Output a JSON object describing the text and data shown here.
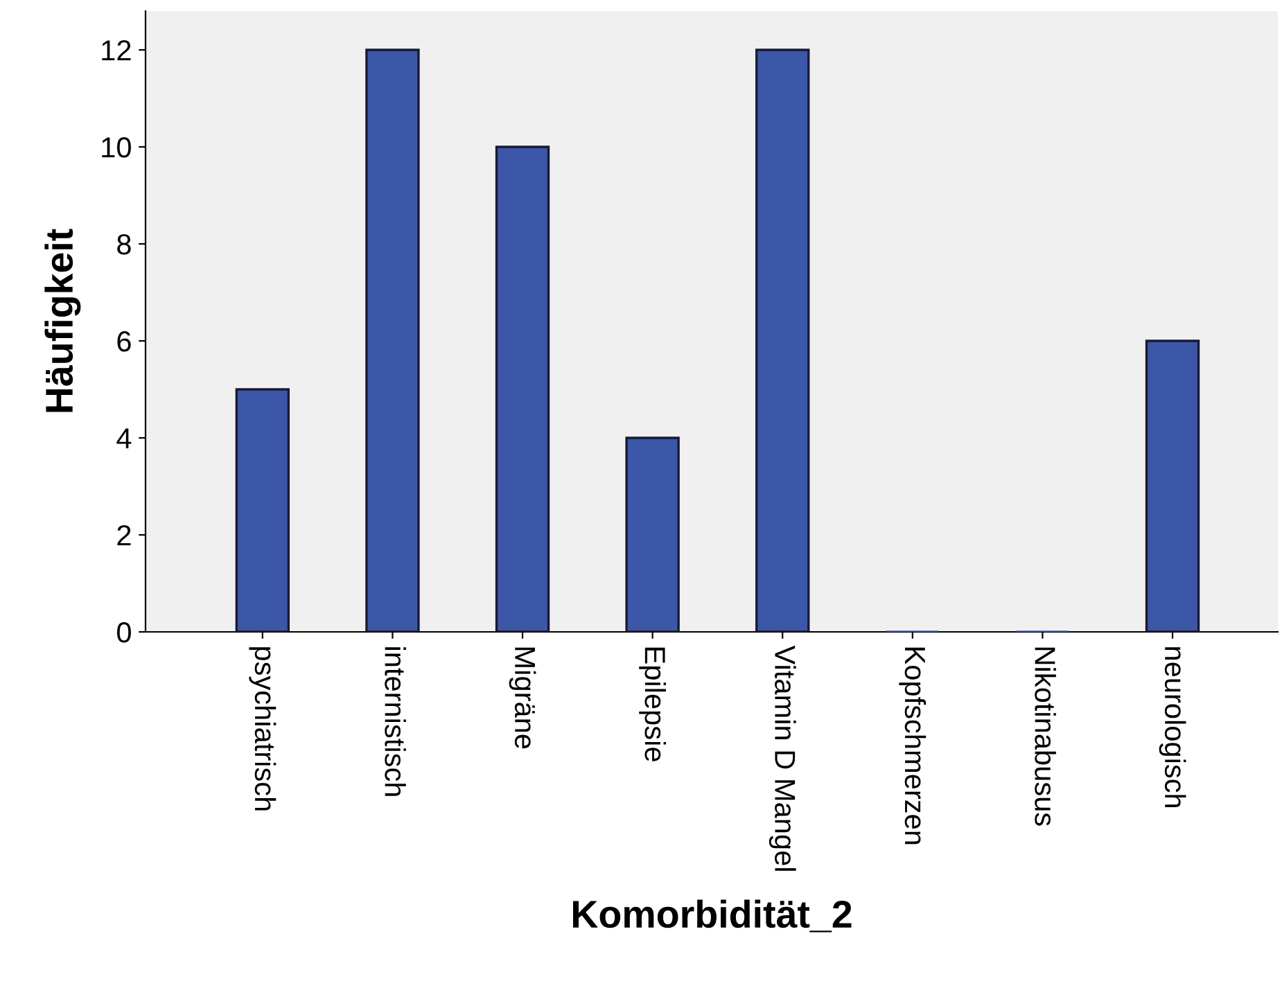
{
  "chart_data": {
    "type": "bar",
    "xlabel": "Komorbidität_2",
    "ylabel": "Häufigkeit",
    "categories": [
      "psychiatrisch",
      "internistisch",
      "Migräne",
      "Epilepsie",
      "Vitamin D Mangel",
      "Kopfschmerzen",
      "Nikotinabusus",
      "neurologisch"
    ],
    "values": [
      5,
      12,
      10,
      4,
      12,
      0,
      0,
      6
    ],
    "color": "#3c56a8",
    "ylim": [
      0,
      12.8
    ],
    "yticks": [
      0,
      2,
      4,
      6,
      8,
      10,
      12
    ],
    "grid": false,
    "legend": false
  }
}
